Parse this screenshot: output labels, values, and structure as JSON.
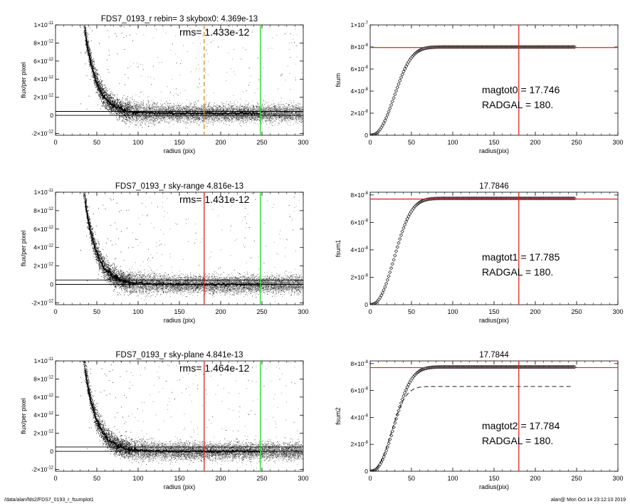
{
  "footer": {
    "left": "/data/alan/fds2/FDS7_0193_r_fsumplot1",
    "right": "alan@  Mon Oct 14 23:12:10 2019"
  },
  "colors": {
    "red": "#e02020",
    "green": "#22dd22",
    "orange": "#e08a1e",
    "points_dark": "#222222",
    "points_grey": "#8f8f8f",
    "profile": "#000000",
    "fsum_marker": "#222222"
  },
  "chart_data": [
    {
      "type": "scatter",
      "title": "FDS7_0193_r rebin= 3    skybox0:  4.369e-13",
      "rms_label": "rms= 1.433e-12",
      "xlabel": "radius (pix)",
      "ylabel": "flux/per pixel",
      "xlim": [
        0,
        300
      ],
      "ylim": [
        -2.2e-12,
        1e-11
      ],
      "xticks": [
        "0",
        "50",
        "100",
        "150",
        "200",
        "250",
        "300"
      ],
      "yticks": [
        {
          "v": 1e-11,
          "m": "1×10",
          "e": "-11"
        },
        {
          "v": 8e-12,
          "m": "8×10",
          "e": "-12"
        },
        {
          "v": 6e-12,
          "m": "6×10",
          "e": "-12"
        },
        {
          "v": 4e-12,
          "m": "4×10",
          "e": "-12"
        },
        {
          "v": 2e-12,
          "m": "2×10",
          "e": "-12"
        },
        {
          "v": 0,
          "m": "0",
          "e": ""
        },
        {
          "v": -2e-12,
          "m": "-2×10",
          "e": "-12"
        }
      ],
      "sky_level": 4.369e-13,
      "vlines": [
        {
          "x": 180,
          "color": "orange",
          "dash": true
        },
        {
          "x": 248,
          "color": "green",
          "dash": false
        }
      ],
      "profile": {
        "a": 1.1e-11,
        "r0": 33,
        "scale": 14.5,
        "offset": 2.2e-13
      },
      "scatter_max_r": 300
    },
    {
      "type": "line",
      "title": "",
      "xlabel": "radius(pix)",
      "ylabel": "fsum",
      "xlim": [
        0,
        300
      ],
      "ylim": [
        0,
        1e-07
      ],
      "xticks": [
        "0",
        "50",
        "100",
        "150",
        "200",
        "250",
        "300"
      ],
      "yticks": [
        {
          "v": 1e-07,
          "m": "1×10",
          "e": "-7"
        },
        {
          "v": 8e-08,
          "m": "8×10",
          "e": "-8"
        },
        {
          "v": 6e-08,
          "m": "6×10",
          "e": "-8"
        },
        {
          "v": 4e-08,
          "m": "4×10",
          "e": "-8"
        },
        {
          "v": 2e-08,
          "m": "2×10",
          "e": "-8"
        },
        {
          "v": 0,
          "m": "0",
          "e": ""
        }
      ],
      "annot": [
        "magtot0 =  17.746",
        "RADGAL =    180."
      ],
      "hline": 7.95e-08,
      "vline": 180,
      "curve": {
        "max": 8e-08,
        "rmax": 248,
        "rh": 35,
        "k": 2.4
      },
      "dashed_curve": null
    },
    {
      "type": "scatter",
      "title": "FDS7_0193_r sky-range  4.816e-13",
      "rms_label": "rms= 1.431e-12",
      "xlabel": "radius (pix)",
      "ylabel": "flux/per pixel",
      "xlim": [
        0,
        300
      ],
      "ylim": [
        -2.2e-12,
        1e-11
      ],
      "xticks": [
        "0",
        "50",
        "100",
        "150",
        "200",
        "250",
        "300"
      ],
      "yticks": [
        {
          "v": 1e-11,
          "m": "1×10",
          "e": "-11"
        },
        {
          "v": 8e-12,
          "m": "8×10",
          "e": "-12"
        },
        {
          "v": 6e-12,
          "m": "6×10",
          "e": "-12"
        },
        {
          "v": 4e-12,
          "m": "4×10",
          "e": "-12"
        },
        {
          "v": 2e-12,
          "m": "2×10",
          "e": "-12"
        },
        {
          "v": 0,
          "m": "0",
          "e": ""
        },
        {
          "v": -2e-12,
          "m": "-2×10",
          "e": "-12"
        }
      ],
      "sky_level": 4.816e-13,
      "vlines": [
        {
          "x": 180,
          "color": "red",
          "dash": false
        },
        {
          "x": 248,
          "color": "green",
          "dash": false
        }
      ],
      "profile": {
        "a": 1.1e-11,
        "r0": 33,
        "scale": 14.5,
        "offset": 0
      },
      "scatter_max_r": 300
    },
    {
      "type": "line",
      "title": "17.7846",
      "xlabel": "radius(pix)",
      "ylabel": "fsum1",
      "xlim": [
        0,
        300
      ],
      "ylim": [
        0,
        8.2e-08
      ],
      "xticks": [
        "0",
        "50",
        "100",
        "150",
        "200",
        "250",
        "300"
      ],
      "yticks": [
        {
          "v": 8e-08,
          "m": "8×10",
          "e": "-8"
        },
        {
          "v": 6e-08,
          "m": "6×10",
          "e": "-8"
        },
        {
          "v": 4e-08,
          "m": "4×10",
          "e": "-8"
        },
        {
          "v": 2e-08,
          "m": "2×10",
          "e": "-8"
        },
        {
          "v": 0,
          "m": "0",
          "e": ""
        }
      ],
      "annot": [
        "magtot1 =  17.785",
        "RADGAL =    180."
      ],
      "hline": 7.7e-08,
      "vline": 180,
      "curve": {
        "max": 7.75e-08,
        "rmax": 248,
        "rh": 35,
        "k": 2.4
      },
      "dashed_curve": null
    },
    {
      "type": "scatter",
      "title": "FDS7_0193_r sky-plane  4.841e-13",
      "rms_label": "rms= 1.464e-12",
      "xlabel": "radius (pix)",
      "ylabel": "flux/per pixel",
      "xlim": [
        0,
        300
      ],
      "ylim": [
        -2.2e-12,
        1e-11
      ],
      "xticks": [
        "0",
        "50",
        "100",
        "150",
        "200",
        "250",
        "300"
      ],
      "yticks": [
        {
          "v": 1e-11,
          "m": "1×10",
          "e": "-11"
        },
        {
          "v": 8e-12,
          "m": "8×10",
          "e": "-12"
        },
        {
          "v": 6e-12,
          "m": "6×10",
          "e": "-12"
        },
        {
          "v": 4e-12,
          "m": "4×10",
          "e": "-12"
        },
        {
          "v": 2e-12,
          "m": "2×10",
          "e": "-12"
        },
        {
          "v": 0,
          "m": "0",
          "e": ""
        },
        {
          "v": -2e-12,
          "m": "-2×10",
          "e": "-12"
        }
      ],
      "sky_level": 4.841e-13,
      "vlines": [
        {
          "x": 180,
          "color": "red",
          "dash": false
        },
        {
          "x": 248,
          "color": "green",
          "dash": false
        }
      ],
      "profile": {
        "a": 1.1e-11,
        "r0": 33,
        "scale": 14.5,
        "offset": 0
      },
      "scatter_max_r": 300
    },
    {
      "type": "line",
      "title": "17.7844",
      "xlabel": "radius(pix)",
      "ylabel": "fsum2",
      "xlim": [
        0,
        300
      ],
      "ylim": [
        0,
        8.2e-08
      ],
      "xticks": [
        "0",
        "50",
        "100",
        "150",
        "200",
        "250",
        "300"
      ],
      "yticks": [
        {
          "v": 8e-08,
          "m": "8×10",
          "e": "-8"
        },
        {
          "v": 6e-08,
          "m": "6×10",
          "e": "-8"
        },
        {
          "v": 4e-08,
          "m": "4×10",
          "e": "-8"
        },
        {
          "v": 2e-08,
          "m": "2×10",
          "e": "-8"
        },
        {
          "v": 0,
          "m": "0",
          "e": ""
        }
      ],
      "annot": [
        "magtot2 =  17.784",
        "RADGAL =    180."
      ],
      "hline": 7.7e-08,
      "vline": 180,
      "curve": {
        "max": 7.75e-08,
        "rmax": 248,
        "rh": 35,
        "k": 2.4
      },
      "dashed_curve": {
        "max": 6.3e-08,
        "rmax": 245,
        "rh": 30,
        "k": 2.4
      }
    }
  ]
}
